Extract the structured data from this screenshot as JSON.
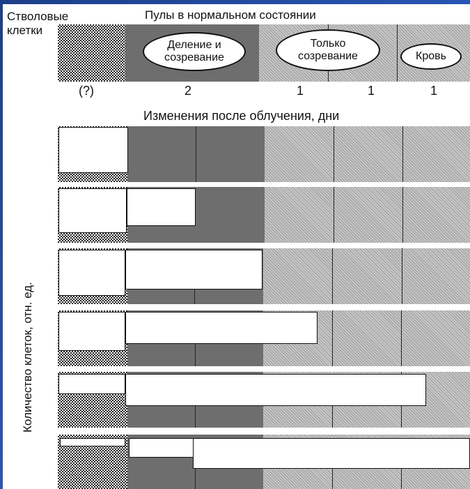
{
  "header": {
    "stem_label_line1": "Стволовые",
    "stem_label_line2": "клетки",
    "pools_title": "Пулы в нормальном состоянии"
  },
  "pools": {
    "division": "Деление и созревание",
    "maturation": "Только созревание",
    "blood": "Кровь"
  },
  "durations": [
    "(?)",
    "2",
    "1",
    "1",
    "1"
  ],
  "changes_title": "Изменения после облучения, дни",
  "y_axis_label": "Количество клеток, отн. ед."
}
